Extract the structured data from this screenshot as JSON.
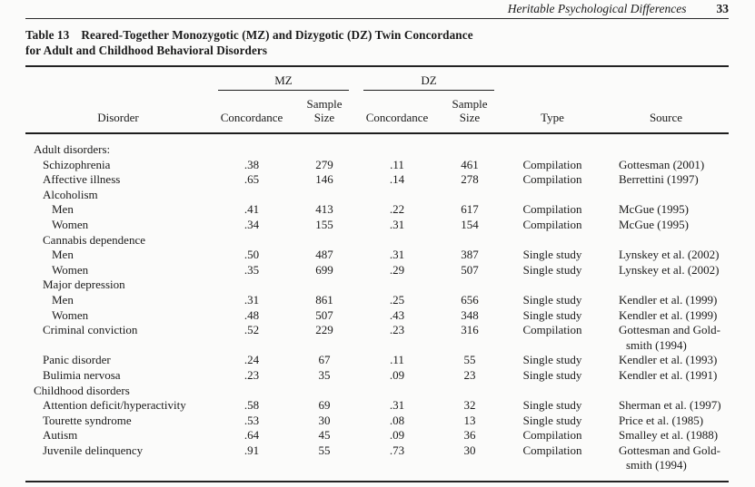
{
  "page": {
    "running_head": "Heritable Psychological Differences",
    "page_number": "33"
  },
  "table": {
    "title": {
      "label": "Table 13",
      "line1": "Reared-Together Monozygotic (MZ) and Dizygotic (DZ) Twin Concordance",
      "line2": "for Adult and Childhood Behavioral Disorders"
    },
    "columns": {
      "disorder": "Disorder",
      "mz": {
        "group": "MZ",
        "concordance": "Concordance",
        "sample_size": "Sample\nSize"
      },
      "dz": {
        "group": "DZ",
        "concordance": "Concordance",
        "sample_size": "Sample\nSize"
      },
      "type": "Type",
      "source": "Source"
    },
    "rows": [
      {
        "label": "Adult disorders:",
        "indent": 0
      },
      {
        "label": "Schizophrenia",
        "indent": 1,
        "mz_c": ".38",
        "mz_n": "279",
        "dz_c": ".11",
        "dz_n": "461",
        "type": "Compilation",
        "source": "Gottesman (2001)"
      },
      {
        "label": "Affective illness",
        "indent": 1,
        "mz_c": ".65",
        "mz_n": "146",
        "dz_c": ".14",
        "dz_n": "278",
        "type": "Compilation",
        "source": "Berrettini (1997)"
      },
      {
        "label": "Alcoholism",
        "indent": 1
      },
      {
        "label": "Men",
        "indent": 2,
        "mz_c": ".41",
        "mz_n": "413",
        "dz_c": ".22",
        "dz_n": "617",
        "type": "Compilation",
        "source": "McGue (1995)"
      },
      {
        "label": "Women",
        "indent": 2,
        "mz_c": ".34",
        "mz_n": "155",
        "dz_c": ".31",
        "dz_n": "154",
        "type": "Compilation",
        "source": "McGue (1995)"
      },
      {
        "label": "Cannabis dependence",
        "indent": 1
      },
      {
        "label": "Men",
        "indent": 2,
        "mz_c": ".50",
        "mz_n": "487",
        "dz_c": ".31",
        "dz_n": "387",
        "type": "Single study",
        "source": "Lynskey et al. (2002)"
      },
      {
        "label": "Women",
        "indent": 2,
        "mz_c": ".35",
        "mz_n": "699",
        "dz_c": ".29",
        "dz_n": "507",
        "type": "Single study",
        "source": "Lynskey et al. (2002)"
      },
      {
        "label": "Major depression",
        "indent": 1
      },
      {
        "label": "Men",
        "indent": 2,
        "mz_c": ".31",
        "mz_n": "861",
        "dz_c": ".25",
        "dz_n": "656",
        "type": "Single study",
        "source": "Kendler et al. (1999)"
      },
      {
        "label": "Women",
        "indent": 2,
        "mz_c": ".48",
        "mz_n": "507",
        "dz_c": ".43",
        "dz_n": "348",
        "type": "Single study",
        "source": "Kendler et al. (1999)"
      },
      {
        "label": "Criminal conviction",
        "indent": 1,
        "mz_c": ".52",
        "mz_n": "229",
        "dz_c": ".23",
        "dz_n": "316",
        "type": "Compilation",
        "source": "Gottesman and Gold-\nsmith (1994)"
      },
      {
        "label": "Panic disorder",
        "indent": 1,
        "mz_c": ".24",
        "mz_n": "67",
        "dz_c": ".11",
        "dz_n": "55",
        "type": "Single study",
        "source": "Kendler et al. (1993)"
      },
      {
        "label": "Bulimia nervosa",
        "indent": 1,
        "mz_c": ".23",
        "mz_n": "35",
        "dz_c": ".09",
        "dz_n": "23",
        "type": "Single study",
        "source": "Kendler et al. (1991)"
      },
      {
        "label": "Childhood disorders",
        "indent": 0
      },
      {
        "label": "Attention deficit/hyperactivity",
        "indent": 1,
        "mz_c": ".58",
        "mz_n": "69",
        "dz_c": ".31",
        "dz_n": "32",
        "type": "Single study",
        "source": "Sherman et al. (1997)"
      },
      {
        "label": "Tourette syndrome",
        "indent": 1,
        "mz_c": ".53",
        "mz_n": "30",
        "dz_c": ".08",
        "dz_n": "13",
        "type": "Single study",
        "source": "Price et al. (1985)"
      },
      {
        "label": "Autism",
        "indent": 1,
        "mz_c": ".64",
        "mz_n": "45",
        "dz_c": ".09",
        "dz_n": "36",
        "type": "Compilation",
        "source": "Smalley et al. (1988)"
      },
      {
        "label": "Juvenile delinquency",
        "indent": 1,
        "mz_c": ".91",
        "mz_n": "55",
        "dz_c": ".73",
        "dz_n": "30",
        "type": "Compilation",
        "source": "Gottesman and Gold-\nsmith (1994)"
      }
    ]
  }
}
